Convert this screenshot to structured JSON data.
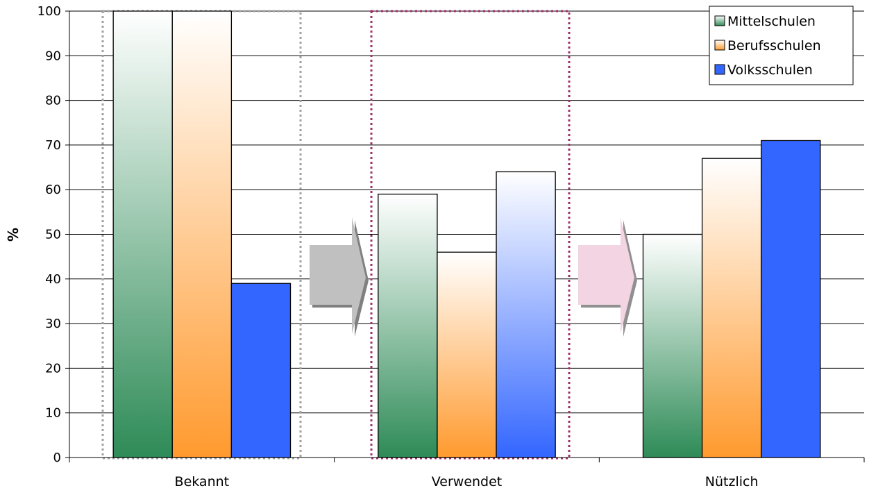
{
  "chart_data": {
    "type": "bar",
    "categories": [
      "Bekannt",
      "Verwendet",
      "Nützlich"
    ],
    "series": [
      {
        "name": "Mittelschulen",
        "values": [
          100,
          59,
          50
        ],
        "color": "#2e8b57"
      },
      {
        "name": "Berufsschulen",
        "values": [
          100,
          46,
          67
        ],
        "color": "#ff9a2e"
      },
      {
        "name": "Volksschulen",
        "values": [
          39,
          64,
          71
        ],
        "color": "#3366ff"
      }
    ],
    "ylabel": "%",
    "xlabel": "",
    "ylim": [
      0,
      100
    ],
    "yticks": [
      0,
      10,
      20,
      30,
      40,
      50,
      60,
      70,
      80,
      90,
      100
    ],
    "grid": true,
    "legend_position": "top-right"
  }
}
